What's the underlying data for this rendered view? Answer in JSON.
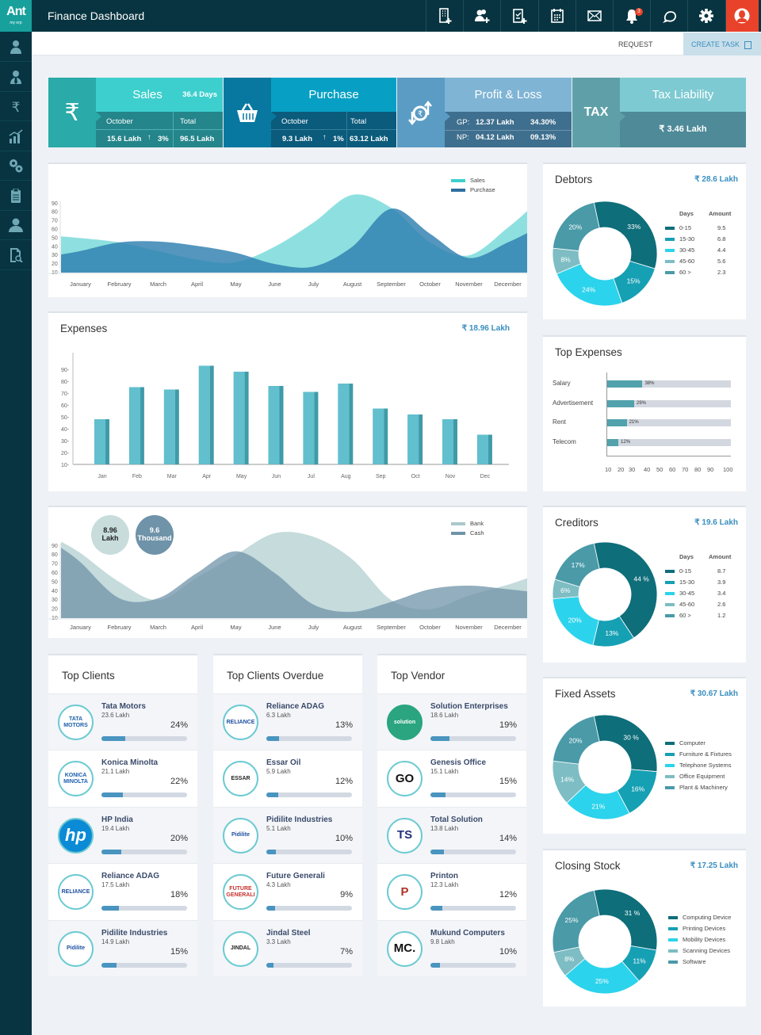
{
  "app": {
    "logo": "Ant",
    "logo_sub": "my erp",
    "title": "Finance Dashboard",
    "notification_count": "3"
  },
  "header_icons": [
    "add-building-icon",
    "add-user-icon",
    "add-clipboard-icon",
    "calendar-icon",
    "mail-icon",
    "bell-icon",
    "chat-icon",
    "gear-icon",
    "avatar-icon"
  ],
  "sidebar": {
    "items": [
      "user-icon",
      "employee-icon",
      "rupee-icon",
      "analytics-icon",
      "settings-gears-icon",
      "clipboard-icon",
      "person-icon",
      "document-search-icon"
    ]
  },
  "subheader": {
    "request": "REQUEST",
    "create_task": "CREATE TASK"
  },
  "colors": {
    "accent": "#3a8fc0",
    "sidebar": "#073440",
    "alert": "#e8432a"
  },
  "kpis": {
    "sales": {
      "title": "Sales",
      "days": "36.4 Days",
      "col1": "October",
      "col2": "Total",
      "month_value": "15.6 Lakh",
      "change": "3%",
      "total": "96.5 Lakh"
    },
    "purchase": {
      "title": "Purchase",
      "col1": "October",
      "col2": "Total",
      "month_value": "9.3 Lakh",
      "change": "1%",
      "total": "63.12 Lakh"
    },
    "pl": {
      "title": "Profit & Loss",
      "gp_label": "GP:",
      "gp_value": "12.37 Lakh",
      "gp_pct": "34.30%",
      "np_label": "NP:",
      "np_value": "04.12 Lakh",
      "np_pct": "09.13%"
    },
    "tax": {
      "title": "Tax Liability",
      "icon_text": "TAX",
      "value": "₹ 3.46 Lakh"
    }
  },
  "chart_data": [
    {
      "type": "area",
      "categories": [
        "January",
        "February",
        "March",
        "April",
        "May",
        "June",
        "July",
        "August",
        "September",
        "October",
        "November",
        "December"
      ],
      "yticks": [
        90,
        80,
        70,
        60,
        50,
        40,
        30,
        20,
        10
      ],
      "ylim": [
        10,
        118
      ],
      "legend": "top-right",
      "series": [
        {
          "name": "Sales",
          "color": "#8ee0e0",
          "values": [
            50,
            45,
            35,
            25,
            22,
            40,
            68,
            100,
            85,
            45,
            30,
            62
          ]
        },
        {
          "name": "Purchase",
          "color": "#2e7fb0",
          "values": [
            35,
            45,
            46,
            41,
            33,
            20,
            17,
            40,
            84,
            55,
            27,
            45
          ]
        }
      ]
    },
    {
      "type": "bar",
      "title": "Expenses",
      "total": "₹ 18.96 Lakh",
      "categories": [
        "Jan",
        "Feb",
        "Mar",
        "Apr",
        "May",
        "Jun",
        "Jul",
        "Aug",
        "Sep",
        "Oct",
        "Nov",
        "Dec"
      ],
      "yticks": [
        "90-",
        "80-",
        "70-",
        "60-",
        "50-",
        "40-",
        "30-",
        "20-",
        "10-"
      ],
      "ylim": [
        10,
        100
      ],
      "values": [
        48,
        75,
        73,
        93,
        88,
        76,
        71,
        78,
        57,
        52,
        48,
        35
      ]
    },
    {
      "type": "area",
      "categories": [
        "January",
        "February",
        "March",
        "April",
        "May",
        "June",
        "July",
        "August",
        "September",
        "October",
        "November",
        "December"
      ],
      "yticks": [
        90,
        80,
        70,
        60,
        50,
        40,
        30,
        20,
        10
      ],
      "ylim": [
        10,
        110
      ],
      "legend": "top-right",
      "bubbles": [
        {
          "value": "8.96",
          "unit": "Lakh"
        },
        {
          "value": "9.6",
          "unit": "Thousand"
        }
      ],
      "series": [
        {
          "name": "Bank",
          "color": "#c5dbdc",
          "values": [
            82,
            50,
            30,
            55,
            80,
            104,
            100,
            75,
            30,
            20,
            35,
            47
          ]
        },
        {
          "name": "Cash",
          "color": "#6f93a8",
          "values": [
            72,
            32,
            32,
            60,
            84,
            60,
            25,
            17,
            28,
            42,
            46,
            42
          ]
        }
      ]
    },
    {
      "type": "bar",
      "orientation": "horizontal",
      "title": "Top Expenses",
      "categories": [
        "Salary",
        "Advertisement",
        "Rent",
        "Telecom"
      ],
      "values": [
        38,
        29,
        21,
        12
      ],
      "labels": [
        "38%",
        "29%",
        "21%",
        "12%"
      ],
      "xticks": [
        "10",
        "20",
        "30",
        "40",
        "50",
        "60",
        "70",
        "80",
        "90",
        "100"
      ]
    },
    {
      "type": "pie",
      "title": "Debtors",
      "total": "₹ 28.6 Lakh",
      "col1": "Days",
      "col2": "Amount",
      "slices": [
        {
          "label": "0-15",
          "amount": "9.5",
          "pct": 33,
          "color": "#0e6e7a"
        },
        {
          "label": "15-30",
          "amount": "6.8",
          "pct": 15,
          "color": "#16a0b4"
        },
        {
          "label": "30-45",
          "amount": "4.4",
          "pct": 24,
          "color": "#2cd3ec"
        },
        {
          "label": "45-60",
          "amount": "5.6",
          "pct": 8,
          "color": "#7dbdc3"
        },
        {
          "label": "60 >",
          "amount": "2.3",
          "pct": 20,
          "color": "#4a9aa8"
        }
      ],
      "pct_labels": [
        "33%",
        "15%",
        "24%",
        "8%",
        "20%"
      ]
    },
    {
      "type": "pie",
      "title": "Creditors",
      "total": "₹ 19.6 Lakh",
      "col1": "Days",
      "col2": "Amount",
      "slices": [
        {
          "label": "0-15",
          "amount": "8.7",
          "pct": 44,
          "color": "#0e6e7a"
        },
        {
          "label": "15-30",
          "amount": "3.9",
          "pct": 13,
          "color": "#16a0b4"
        },
        {
          "label": "30-45",
          "amount": "3.4",
          "pct": 20,
          "color": "#2cd3ec"
        },
        {
          "label": "45-60",
          "amount": "2.6",
          "pct": 6,
          "color": "#7dbdc3"
        },
        {
          "label": "60 >",
          "amount": "1.2",
          "pct": 17,
          "color": "#4a9aa8"
        }
      ],
      "pct_labels": [
        "44 %",
        "13%",
        "20%",
        "6%",
        "17%"
      ]
    },
    {
      "type": "pie",
      "title": "Fixed Assets",
      "total": "₹ 30.67 Lakh",
      "slices": [
        {
          "label": "Computer",
          "pct": 30,
          "color": "#0e6e7a"
        },
        {
          "label": "Furniture & Fixtures",
          "pct": 16,
          "color": "#16a0b4"
        },
        {
          "label": "Telephone Systems",
          "pct": 21,
          "color": "#2cd3ec"
        },
        {
          "label": "Office Equipment",
          "pct": 14,
          "color": "#7dbdc3"
        },
        {
          "label": "Plant & Machinery",
          "pct": 20,
          "color": "#4a9aa8"
        }
      ],
      "pct_labels": [
        "30 %",
        "16%",
        "21%",
        "14%",
        "20%"
      ]
    },
    {
      "type": "pie",
      "title": "Closing Stock",
      "total": "₹ 17.25 Lakh",
      "slices": [
        {
          "label": "Computing Device",
          "pct": 31,
          "color": "#0e6e7a"
        },
        {
          "label": "Printing Devices",
          "pct": 11,
          "color": "#16a0b4"
        },
        {
          "label": "Mobility Devices",
          "pct": 25,
          "color": "#2cd3ec"
        },
        {
          "label": "Scanning Devices",
          "pct": 8,
          "color": "#7dbdc3"
        },
        {
          "label": "Software",
          "pct": 25,
          "color": "#4a9aa8"
        }
      ],
      "pct_labels": [
        "31 %",
        "11%",
        "25%",
        "8%",
        "25%"
      ]
    }
  ],
  "lists": [
    {
      "title": "Top Clients",
      "items": [
        {
          "name": "Tata Motors",
          "amount": "23.6 Lakh",
          "pct": "24%",
          "fill": 24,
          "logo": "TATA MOTORS",
          "logo_color": "#1d5fa6"
        },
        {
          "name": "Konica Minolta",
          "amount": "21.1 Lakh",
          "pct": "22%",
          "fill": 22,
          "logo": "KONICA MINOLTA",
          "logo_color": "#1a5fb0"
        },
        {
          "name": "HP India",
          "amount": "19.4 Lakh",
          "pct": "20%",
          "fill": 20,
          "logo": "hp",
          "logo_color": "#0b8ad6"
        },
        {
          "name": "Reliance  ADAG",
          "amount": "17.5 Lakh",
          "pct": "18%",
          "fill": 18,
          "logo": "RELIANCE",
          "logo_color": "#1c4fa0"
        },
        {
          "name": "Pidilite Industries",
          "amount": "14.9 Lakh",
          "pct": "15%",
          "fill": 15,
          "logo": "Pidilite",
          "logo_color": "#1c4fa0"
        }
      ]
    },
    {
      "title": "Top Clients Overdue",
      "items": [
        {
          "name": "Reliance ADAG",
          "amount": "6.3 Lakh",
          "pct": "13%",
          "fill": 13,
          "logo": "RELIANCE",
          "logo_color": "#1c4fa0"
        },
        {
          "name": "Essar Oil",
          "amount": "5.9 Lakh",
          "pct": "12%",
          "fill": 12,
          "logo": "ESSAR",
          "logo_color": "#222"
        },
        {
          "name": "Pidilite Industries",
          "amount": "5.1 Lakh",
          "pct": "10%",
          "fill": 10,
          "logo": "Pidilite",
          "logo_color": "#1c4fa0"
        },
        {
          "name": "Future Generali",
          "amount": "4.3 Lakh",
          "pct": "9%",
          "fill": 9,
          "logo": "FUTURE GENERALI",
          "logo_color": "#c8322e"
        },
        {
          "name": "Jindal Steel",
          "amount": "3.3 Lakh",
          "pct": "7%",
          "fill": 7,
          "logo": "JINDAL",
          "logo_color": "#222"
        }
      ]
    },
    {
      "title": "Top Vendor",
      "items": [
        {
          "name": "Solution Enterprises",
          "amount": "18.6 Lakh",
          "pct": "19%",
          "fill": 19,
          "logo": "solution",
          "logo_color": "#fff"
        },
        {
          "name": "Genesis Office",
          "amount": "15.1 Lakh",
          "pct": "15%",
          "fill": 15,
          "logo": "GO",
          "logo_color": "#111"
        },
        {
          "name": "Total Solution",
          "amount": "13.8 Lakh",
          "pct": "14%",
          "fill": 14,
          "logo": "TS",
          "logo_color": "#23307a"
        },
        {
          "name": "Printon",
          "amount": "12.3 Lakh",
          "pct": "12%",
          "fill": 12,
          "logo": "P",
          "logo_color": "#b0302a"
        },
        {
          "name": "Mukund Computers",
          "amount": "9.8 Lakh",
          "pct": "10%",
          "fill": 10,
          "logo": "MC.",
          "logo_color": "#111"
        }
      ]
    }
  ]
}
